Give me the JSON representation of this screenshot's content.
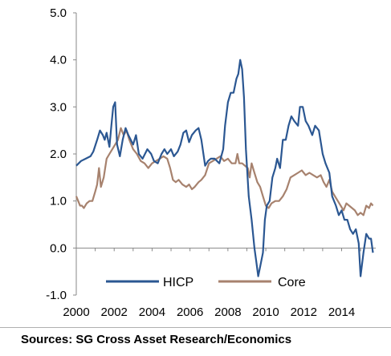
{
  "chart_data": {
    "type": "line",
    "title": "",
    "xlabel": "",
    "ylabel": "",
    "xlim": [
      2000,
      2015.8
    ],
    "ylim": [
      -1.0,
      5.0
    ],
    "y_ticks": [
      -1.0,
      0.0,
      1.0,
      2.0,
      3.0,
      4.0,
      5.0
    ],
    "y_tick_labels": [
      "-1.0",
      "0.0",
      "1.0",
      "2.0",
      "3.0",
      "4.0",
      "5.0"
    ],
    "x_ticks": [
      2000,
      2002,
      2004,
      2006,
      2008,
      2010,
      2012,
      2014
    ],
    "x_tick_labels": [
      "2000",
      "2002",
      "2004",
      "2006",
      "2008",
      "2010",
      "2012",
      "2014"
    ],
    "grid": false,
    "legend_position": "bottom-center",
    "series": [
      {
        "name": "HICP",
        "color": "#2b5792",
        "points": [
          [
            2000.0,
            1.75
          ],
          [
            2000.25,
            1.85
          ],
          [
            2000.5,
            1.9
          ],
          [
            2000.75,
            1.95
          ],
          [
            2000.9,
            2.05
          ],
          [
            2001.1,
            2.3
          ],
          [
            2001.25,
            2.5
          ],
          [
            2001.4,
            2.4
          ],
          [
            2001.5,
            2.3
          ],
          [
            2001.6,
            2.45
          ],
          [
            2001.75,
            2.15
          ],
          [
            2001.85,
            2.6
          ],
          [
            2001.95,
            3.0
          ],
          [
            2002.05,
            3.1
          ],
          [
            2002.15,
            2.2
          ],
          [
            2002.3,
            1.95
          ],
          [
            2002.45,
            2.3
          ],
          [
            2002.6,
            2.55
          ],
          [
            2002.75,
            2.4
          ],
          [
            2003.0,
            2.2
          ],
          [
            2003.15,
            2.4
          ],
          [
            2003.3,
            2.0
          ],
          [
            2003.5,
            1.9
          ],
          [
            2003.75,
            2.1
          ],
          [
            2003.95,
            2.0
          ],
          [
            2004.1,
            1.85
          ],
          [
            2004.3,
            1.8
          ],
          [
            2004.5,
            2.0
          ],
          [
            2004.65,
            2.1
          ],
          [
            2004.8,
            2.0
          ],
          [
            2005.0,
            2.1
          ],
          [
            2005.15,
            1.95
          ],
          [
            2005.35,
            2.05
          ],
          [
            2005.5,
            2.2
          ],
          [
            2005.65,
            2.45
          ],
          [
            2005.8,
            2.5
          ],
          [
            2005.95,
            2.25
          ],
          [
            2006.1,
            2.4
          ],
          [
            2006.3,
            2.5
          ],
          [
            2006.45,
            2.55
          ],
          [
            2006.6,
            2.3
          ],
          [
            2006.8,
            1.75
          ],
          [
            2006.95,
            1.85
          ],
          [
            2007.1,
            1.9
          ],
          [
            2007.3,
            1.9
          ],
          [
            2007.55,
            1.8
          ],
          [
            2007.75,
            2.1
          ],
          [
            2007.85,
            2.6
          ],
          [
            2008.0,
            3.1
          ],
          [
            2008.15,
            3.3
          ],
          [
            2008.3,
            3.3
          ],
          [
            2008.45,
            3.6
          ],
          [
            2008.55,
            3.7
          ],
          [
            2008.65,
            4.0
          ],
          [
            2008.75,
            3.8
          ],
          [
            2008.85,
            3.2
          ],
          [
            2008.95,
            2.1
          ],
          [
            2009.1,
            1.1
          ],
          [
            2009.25,
            0.6
          ],
          [
            2009.4,
            0.0
          ],
          [
            2009.5,
            -0.3
          ],
          [
            2009.6,
            -0.6
          ],
          [
            2009.7,
            -0.4
          ],
          [
            2009.85,
            -0.1
          ],
          [
            2009.95,
            0.6
          ],
          [
            2010.05,
            0.9
          ],
          [
            2010.2,
            1.0
          ],
          [
            2010.35,
            1.5
          ],
          [
            2010.5,
            1.7
          ],
          [
            2010.6,
            1.9
          ],
          [
            2010.75,
            1.7
          ],
          [
            2010.9,
            2.3
          ],
          [
            2011.05,
            2.3
          ],
          [
            2011.2,
            2.6
          ],
          [
            2011.35,
            2.8
          ],
          [
            2011.5,
            2.7
          ],
          [
            2011.7,
            2.6
          ],
          [
            2011.8,
            3.0
          ],
          [
            2011.95,
            3.0
          ],
          [
            2012.1,
            2.7
          ],
          [
            2012.25,
            2.6
          ],
          [
            2012.45,
            2.4
          ],
          [
            2012.6,
            2.6
          ],
          [
            2012.8,
            2.5
          ],
          [
            2013.0,
            2.0
          ],
          [
            2013.15,
            1.8
          ],
          [
            2013.35,
            1.6
          ],
          [
            2013.5,
            1.1
          ],
          [
            2013.7,
            0.9
          ],
          [
            2013.85,
            0.7
          ],
          [
            2014.0,
            0.8
          ],
          [
            2014.15,
            0.6
          ],
          [
            2014.3,
            0.6
          ],
          [
            2014.45,
            0.4
          ],
          [
            2014.6,
            0.3
          ],
          [
            2014.75,
            0.4
          ],
          [
            2014.9,
            0.1
          ],
          [
            2015.0,
            -0.6
          ],
          [
            2015.15,
            -0.1
          ],
          [
            2015.3,
            0.3
          ],
          [
            2015.45,
            0.2
          ],
          [
            2015.55,
            0.2
          ],
          [
            2015.65,
            -0.1
          ]
        ]
      },
      {
        "name": "Core",
        "color": "#a7826e",
        "points": [
          [
            2000.0,
            1.1
          ],
          [
            2000.1,
            1.0
          ],
          [
            2000.2,
            0.9
          ],
          [
            2000.3,
            0.9
          ],
          [
            2000.4,
            0.85
          ],
          [
            2000.55,
            0.95
          ],
          [
            2000.7,
            1.0
          ],
          [
            2000.85,
            1.0
          ],
          [
            2001.0,
            1.2
          ],
          [
            2001.1,
            1.35
          ],
          [
            2001.2,
            1.7
          ],
          [
            2001.3,
            1.3
          ],
          [
            2001.45,
            1.5
          ],
          [
            2001.6,
            1.9
          ],
          [
            2001.75,
            2.0
          ],
          [
            2001.9,
            2.1
          ],
          [
            2002.05,
            2.2
          ],
          [
            2002.2,
            2.3
          ],
          [
            2002.35,
            2.55
          ],
          [
            2002.5,
            2.4
          ],
          [
            2002.65,
            2.5
          ],
          [
            2002.8,
            2.3
          ],
          [
            2003.0,
            2.1
          ],
          [
            2003.2,
            2.0
          ],
          [
            2003.4,
            1.85
          ],
          [
            2003.6,
            1.8
          ],
          [
            2003.8,
            1.7
          ],
          [
            2004.0,
            1.8
          ],
          [
            2004.2,
            1.85
          ],
          [
            2004.4,
            1.9
          ],
          [
            2004.6,
            1.95
          ],
          [
            2004.8,
            1.9
          ],
          [
            2004.95,
            1.7
          ],
          [
            2005.1,
            1.45
          ],
          [
            2005.25,
            1.4
          ],
          [
            2005.4,
            1.45
          ],
          [
            2005.6,
            1.35
          ],
          [
            2005.8,
            1.3
          ],
          [
            2005.95,
            1.35
          ],
          [
            2006.1,
            1.25
          ],
          [
            2006.25,
            1.3
          ],
          [
            2006.45,
            1.4
          ],
          [
            2006.6,
            1.45
          ],
          [
            2006.8,
            1.55
          ],
          [
            2007.0,
            1.8
          ],
          [
            2007.2,
            1.85
          ],
          [
            2007.4,
            1.9
          ],
          [
            2007.6,
            1.95
          ],
          [
            2007.8,
            1.85
          ],
          [
            2008.0,
            1.9
          ],
          [
            2008.2,
            1.8
          ],
          [
            2008.4,
            1.8
          ],
          [
            2008.5,
            2.0
          ],
          [
            2008.6,
            1.8
          ],
          [
            2008.75,
            1.8
          ],
          [
            2008.9,
            1.75
          ],
          [
            2009.05,
            1.7
          ],
          [
            2009.15,
            1.5
          ],
          [
            2009.25,
            1.8
          ],
          [
            2009.4,
            1.6
          ],
          [
            2009.55,
            1.4
          ],
          [
            2009.7,
            1.3
          ],
          [
            2009.85,
            1.1
          ],
          [
            2010.0,
            0.9
          ],
          [
            2010.15,
            0.85
          ],
          [
            2010.3,
            0.95
          ],
          [
            2010.5,
            1.0
          ],
          [
            2010.7,
            1.0
          ],
          [
            2010.9,
            1.1
          ],
          [
            2011.1,
            1.25
          ],
          [
            2011.3,
            1.5
          ],
          [
            2011.5,
            1.55
          ],
          [
            2011.7,
            1.6
          ],
          [
            2011.9,
            1.65
          ],
          [
            2012.1,
            1.55
          ],
          [
            2012.3,
            1.6
          ],
          [
            2012.5,
            1.55
          ],
          [
            2012.7,
            1.5
          ],
          [
            2012.9,
            1.55
          ],
          [
            2013.05,
            1.4
          ],
          [
            2013.2,
            1.3
          ],
          [
            2013.35,
            1.45
          ],
          [
            2013.5,
            1.2
          ],
          [
            2013.65,
            1.1
          ],
          [
            2013.8,
            1.0
          ],
          [
            2013.95,
            0.9
          ],
          [
            2014.1,
            0.8
          ],
          [
            2014.25,
            0.95
          ],
          [
            2014.4,
            0.9
          ],
          [
            2014.55,
            0.85
          ],
          [
            2014.7,
            0.8
          ],
          [
            2014.85,
            0.7
          ],
          [
            2015.0,
            0.75
          ],
          [
            2015.15,
            0.7
          ],
          [
            2015.3,
            0.9
          ],
          [
            2015.45,
            0.85
          ],
          [
            2015.55,
            0.95
          ],
          [
            2015.65,
            0.9
          ]
        ]
      }
    ]
  },
  "source": "Sources: SG Cross Asset Research/Economics"
}
